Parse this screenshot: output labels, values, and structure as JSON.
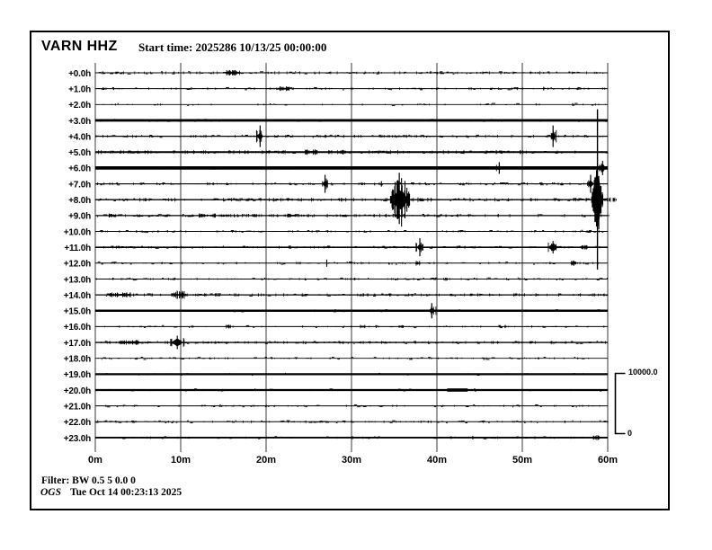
{
  "header": {
    "station": "VARN HHZ",
    "start_time": "Start time: 2025286 10/13/25 00:00:00"
  },
  "footer": {
    "filter": "Filter: BW 0.5 5 0.0 0",
    "agency": "OGS",
    "timestamp": "Tue Oct 14 00:23:13 2025"
  },
  "scale_bar": {
    "max": "10000.0",
    "min": "0"
  },
  "chart_data": {
    "type": "line",
    "subtype": "helicorder-seismogram",
    "title": "VARN HHZ",
    "start_time": "2025286 10/13/25 00:00:00",
    "amplitude_scale": {
      "max": 10000.0,
      "min": 0
    },
    "x_axis": {
      "unit": "minutes",
      "range": [
        0,
        60
      ],
      "tick_minutes": [
        0,
        10,
        20,
        30,
        40,
        50,
        60
      ],
      "tick_labels": [
        "0m",
        "10m",
        "20m",
        "30m",
        "40m",
        "50m",
        "60m"
      ]
    },
    "y_axis": {
      "unit": "hours after start",
      "tick_labels": [
        "+0.0h",
        "+1.0h",
        "+2.0h",
        "+3.0h",
        "+4.0h",
        "+5.0h",
        "+6.0h",
        "+7.0h",
        "+8.0h",
        "+9.0h",
        "+10.0h",
        "+11.0h",
        "+12.0h",
        "+13.0h",
        "+14.0h",
        "+15.0h",
        "+16.0h",
        "+17.0h",
        "+18.0h",
        "+19.0h",
        "+20.0h",
        "+21.0h",
        "+22.0h",
        "+23.0h"
      ]
    },
    "traces": [
      {
        "hour_label": "+0.0h",
        "base_thickness": 1.0,
        "noise_density": 190,
        "noise_amp": 1.1,
        "noise_extent": 1,
        "events": [
          {
            "style": "fuzz",
            "minute": 16.1,
            "amp": 2.6,
            "w": 16
          }
        ]
      },
      {
        "hour_label": "+1.0h",
        "base_thickness": 1.0,
        "noise_density": 130,
        "noise_amp": 1.0,
        "noise_extent": 1,
        "events": [
          {
            "style": "fuzz",
            "minute": 22.1,
            "amp": 2.2,
            "w": 12
          },
          {
            "style": "dot",
            "minute": 52.5,
            "amp": 2,
            "w": 2
          }
        ]
      },
      {
        "hour_label": "+2.0h",
        "base_thickness": 0.9,
        "noise_density": 60,
        "noise_amp": 0.8,
        "noise_extent": 1,
        "events": [
          {
            "style": "dot",
            "minute": 55.9,
            "amp": 1.5,
            "w": 2
          }
        ]
      },
      {
        "hour_label": "+3.0h",
        "base_thickness": 2.8,
        "noise_density": 160,
        "noise_amp": 0.9,
        "noise_extent": 1,
        "events": []
      },
      {
        "hour_label": "+4.0h",
        "base_thickness": 1.2,
        "noise_density": 190,
        "noise_amp": 1.1,
        "noise_extent": 1,
        "events": [
          {
            "style": "spike",
            "minute": 19.3,
            "amp": 12,
            "w": 7
          },
          {
            "style": "spike",
            "minute": 53.6,
            "amp": 12,
            "w": 7
          }
        ]
      },
      {
        "hour_label": "+5.0h",
        "base_thickness": 2.0,
        "noise_density": 260,
        "noise_amp": 1.4,
        "noise_extent": 0.85,
        "events": [
          {
            "style": "fuzz",
            "minute": 25.3,
            "amp": 2.6,
            "w": 14
          },
          {
            "style": "fuzz",
            "minute": 29,
            "amp": 2.2,
            "w": 8
          }
        ]
      },
      {
        "hour_label": "+6.0h",
        "base_thickness": 3.8,
        "noise_density": 140,
        "noise_amp": 0.9,
        "noise_extent": 1,
        "events": [
          {
            "style": "spike",
            "minute": 47.3,
            "amp": 6.5,
            "w": 9
          },
          {
            "style": "blob",
            "minute": 59.4,
            "amp": 8,
            "w": 6
          }
        ]
      },
      {
        "hour_label": "+7.0h",
        "base_thickness": 1.2,
        "noise_density": 150,
        "noise_amp": 1.0,
        "noise_extent": 1,
        "events": [
          {
            "style": "spike",
            "minute": 26.9,
            "amp": 10,
            "w": 6
          },
          {
            "style": "dot",
            "minute": 33.5,
            "amp": 3,
            "w": 2
          },
          {
            "style": "spike",
            "minute": 58.0,
            "amp": 10,
            "w": 8
          }
        ]
      },
      {
        "hour_label": "+8.0h",
        "base_thickness": 1.4,
        "noise_density": 230,
        "noise_amp": 1.4,
        "noise_extent": 1,
        "events": [
          {
            "style": "big",
            "minute": 35.7,
            "amp": 30,
            "w": 15
          },
          {
            "style": "huge",
            "minute": 58.8,
            "amp": 33,
            "w": 9,
            "clip_span_hours": [
              2.3,
              12.4
            ]
          }
        ]
      },
      {
        "hour_label": "+9.0h",
        "base_thickness": 1.2,
        "noise_density": 240,
        "noise_amp": 1.3,
        "noise_extent": 0.75,
        "events": [
          {
            "style": "fuzz",
            "minute": 2.0,
            "amp": 1.8,
            "w": 8
          },
          {
            "style": "fuzz",
            "minute": 12.5,
            "amp": 2,
            "w": 8
          },
          {
            "style": "fuzz",
            "minute": 13.8,
            "amp": 2,
            "w": 6
          },
          {
            "style": "fuzz",
            "minute": 23,
            "amp": 1.8,
            "w": 10
          }
        ]
      },
      {
        "hour_label": "+10.0h",
        "base_thickness": 1.1,
        "noise_density": 130,
        "noise_amp": 0.9,
        "noise_extent": 1,
        "events": []
      },
      {
        "hour_label": "+11.0h",
        "base_thickness": 1.6,
        "noise_density": 150,
        "noise_amp": 1.0,
        "noise_extent": 1,
        "events": [
          {
            "style": "spike",
            "minute": 38.0,
            "amp": 10,
            "w": 7
          },
          {
            "style": "blob",
            "minute": 53.6,
            "amp": 7,
            "w": 10
          },
          {
            "style": "fuzz",
            "minute": 57.2,
            "amp": 2,
            "w": 8
          }
        ]
      },
      {
        "hour_label": "+12.0h",
        "base_thickness": 1.0,
        "noise_density": 110,
        "noise_amp": 0.9,
        "noise_extent": 1,
        "events": [
          {
            "style": "dot",
            "minute": 27.1,
            "amp": 4,
            "w": 2
          },
          {
            "style": "fuzz",
            "minute": 37.8,
            "amp": 2.5,
            "w": 5
          },
          {
            "style": "fuzz",
            "minute": 56,
            "amp": 2.5,
            "w": 6
          }
        ]
      },
      {
        "hour_label": "+13.0h",
        "base_thickness": 1.0,
        "noise_density": 140,
        "noise_amp": 0.9,
        "noise_extent": 1,
        "events": []
      },
      {
        "hour_label": "+14.0h",
        "base_thickness": 1.3,
        "noise_density": 210,
        "noise_amp": 1.2,
        "noise_extent": 1,
        "events": [
          {
            "style": "fuzz",
            "minute": 2.9,
            "amp": 2.4,
            "w": 24
          },
          {
            "style": "fuzz",
            "minute": 9.8,
            "amp": 4,
            "w": 12
          }
        ]
      },
      {
        "hour_label": "+15.0h",
        "base_thickness": 2.4,
        "noise_density": 120,
        "noise_amp": 0.9,
        "noise_extent": 1,
        "events": [
          {
            "style": "spike",
            "minute": 39.4,
            "amp": 8.5,
            "w": 8
          }
        ]
      },
      {
        "hour_label": "+16.0h",
        "base_thickness": 1.0,
        "noise_density": 100,
        "noise_amp": 0.8,
        "noise_extent": 1,
        "events": [
          {
            "style": "fuzz",
            "minute": 15.6,
            "amp": 2,
            "w": 5
          },
          {
            "style": "fuzz",
            "minute": 31.3,
            "amp": 2,
            "w": 5
          },
          {
            "style": "fuzz",
            "minute": 35.8,
            "amp": 2,
            "w": 5
          },
          {
            "style": "dot",
            "minute": 48,
            "amp": 1.8,
            "w": 2
          }
        ]
      },
      {
        "hour_label": "+17.0h",
        "base_thickness": 1.3,
        "noise_density": 180,
        "noise_amp": 1.1,
        "noise_extent": 1,
        "events": [
          {
            "style": "fuzz",
            "minute": 4.0,
            "amp": 2.2,
            "w": 22
          },
          {
            "style": "blob",
            "minute": 9.6,
            "amp": 7.5,
            "w": 11
          }
        ]
      },
      {
        "hour_label": "+18.0h",
        "base_thickness": 0.9,
        "noise_density": 120,
        "noise_amp": 0.8,
        "noise_extent": 1,
        "events": []
      },
      {
        "hour_label": "+19.0h",
        "base_thickness": 2.2,
        "noise_density": 80,
        "noise_amp": 0.7,
        "noise_extent": 1,
        "events": []
      },
      {
        "hour_label": "+20.0h",
        "base_thickness": 2.2,
        "noise_density": 80,
        "noise_amp": 0.7,
        "noise_extent": 1,
        "events": [
          {
            "style": "offset",
            "minute_start": 41.2,
            "minute_end": 43.6,
            "amp": 1.8
          }
        ]
      },
      {
        "hour_label": "+21.0h",
        "base_thickness": 1.0,
        "noise_density": 100,
        "noise_amp": 0.8,
        "noise_extent": 1,
        "events": []
      },
      {
        "hour_label": "+22.0h",
        "base_thickness": 1.0,
        "noise_density": 160,
        "noise_amp": 0.9,
        "noise_extent": 1,
        "events": []
      },
      {
        "hour_label": "+23.0h",
        "base_thickness": 1.8,
        "noise_density": 120,
        "noise_amp": 0.9,
        "noise_extent": 1,
        "events": [
          {
            "style": "dot",
            "minute": 30.1,
            "amp": 1.8,
            "w": 2
          },
          {
            "style": "dot",
            "minute": 44.2,
            "amp": 2,
            "w": 3
          },
          {
            "style": "fuzz",
            "minute": 58.7,
            "amp": 2.5,
            "w": 8
          }
        ]
      }
    ]
  }
}
